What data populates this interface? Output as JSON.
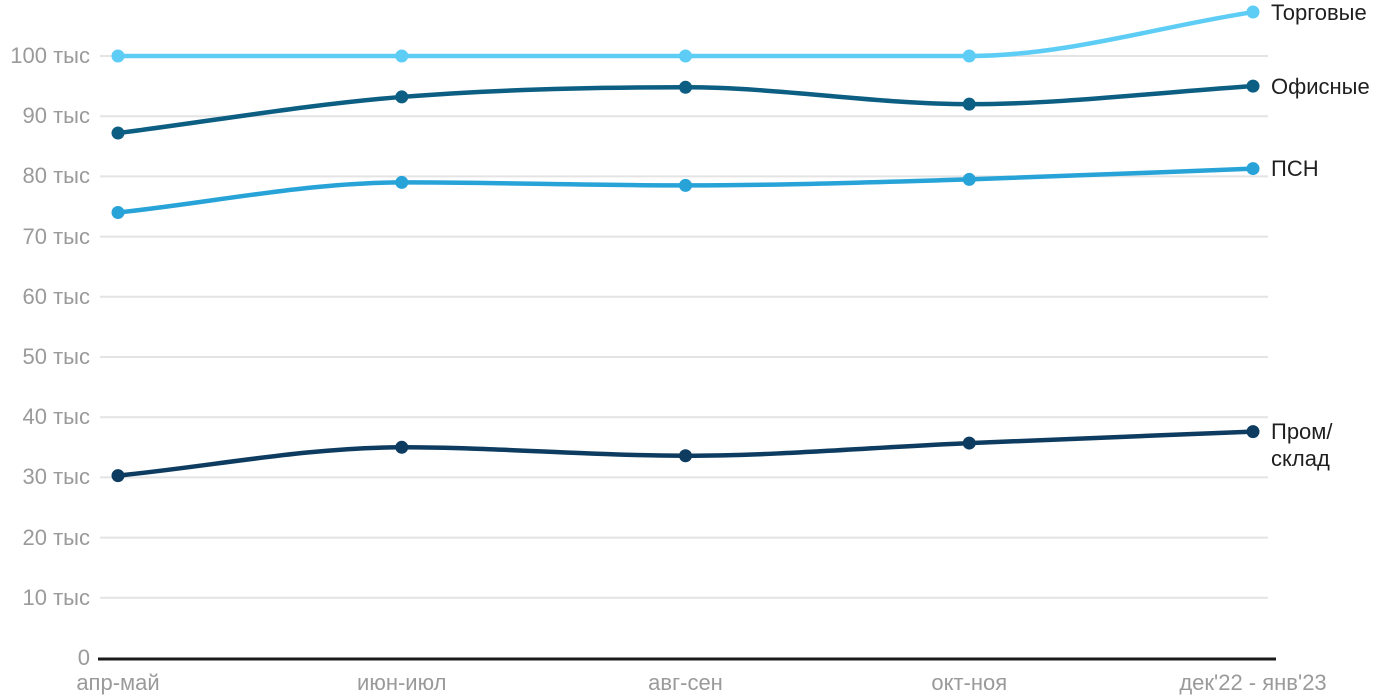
{
  "chart_data": {
    "type": "line",
    "title": "",
    "unit": "тыс",
    "categories": [
      "апр-май",
      "июн-июл",
      "авг-сен",
      "окт-ноя",
      "дек'22 - янв'23"
    ],
    "series": [
      {
        "name": "Торговые",
        "color": "#5ECDF6",
        "values": [
          100,
          100,
          100,
          100,
          107.3
        ],
        "label_lines": [
          "Торговые"
        ]
      },
      {
        "name": "Офисные",
        "color": "#0C5F82",
        "values": [
          87.2,
          93.2,
          94.8,
          92,
          95
        ],
        "label_lines": [
          "Офисные"
        ]
      },
      {
        "name": "ПСН",
        "color": "#27A3D8",
        "values": [
          74,
          79,
          78.5,
          79.5,
          81.3
        ],
        "label_lines": [
          "ПСН"
        ]
      },
      {
        "name": "Пром/склад",
        "color": "#0E3C60",
        "values": [
          30.3,
          35,
          33.6,
          35.7,
          37.6
        ],
        "label_lines": [
          "Пром/",
          "склад"
        ]
      }
    ],
    "y_axis": {
      "ticks": [
        0,
        10,
        20,
        30,
        40,
        50,
        60,
        70,
        80,
        90,
        100
      ],
      "labels": [
        "0",
        "10 тыс",
        "20 тыс",
        "30 тыс",
        "40 тыс",
        "50 тыс",
        "60 тыс",
        "70 тыс",
        "80 тыс",
        "90 тыс",
        "100 тыс"
      ],
      "ylim": [
        0,
        108
      ]
    },
    "grid": true,
    "legend_position": "right"
  },
  "colors": {
    "background": "#ffffff",
    "grid": "#e4e4e4",
    "axis": "#1a1a1a",
    "tick_text": "#9a9a9a",
    "legend_text": "#1f1f1f"
  }
}
